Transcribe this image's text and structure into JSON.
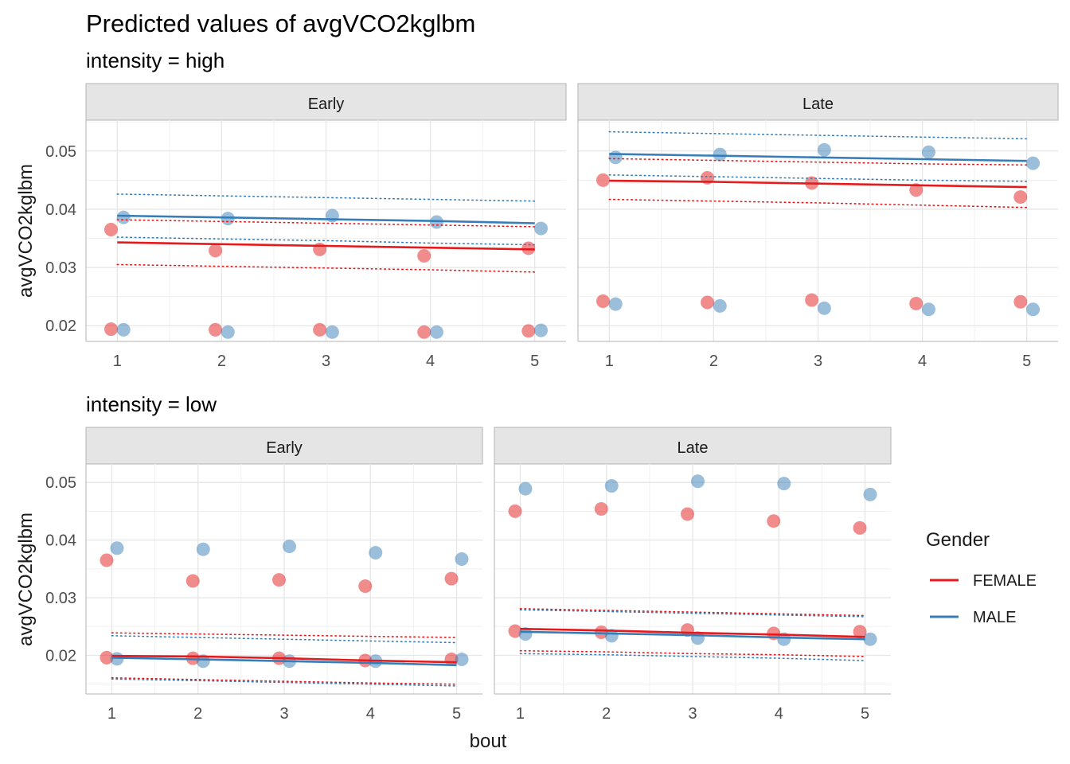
{
  "title": "Predicted values of avgVCO2kglbm",
  "chart_data": {
    "type": "line",
    "title": "Predicted values of avgVCO2kglbm",
    "xlabel": "bout",
    "ylabel": "avgVCO2kglbm",
    "x_ticks": [
      1,
      2,
      3,
      4,
      5
    ],
    "y_ticks": [
      0.02,
      0.03,
      0.04,
      0.05
    ],
    "y_tick_labels": [
      "0.02",
      "0.03",
      "0.04",
      "0.05"
    ],
    "grid": true,
    "legend": {
      "title": "Gender",
      "position": "right",
      "entries": [
        {
          "name": "FEMALE",
          "color": "#e41a1c"
        },
        {
          "name": "MALE",
          "color": "#377eb8"
        }
      ]
    },
    "rows": [
      {
        "label": "intensity = high",
        "ylim": [
          0.0173,
          0.0553
        ],
        "panels": [
          {
            "strip": "Early",
            "series": [
              {
                "name": "FEMALE",
                "x": [
                  1,
                  2,
                  3,
                  4,
                  5
                ],
                "fit": [
                  0.0343,
                  0.034,
                  0.0337,
                  0.0334,
                  0.0331
                ],
                "lower": [
                  0.0305,
                  0.0302,
                  0.0299,
                  0.0296,
                  0.0292
                ],
                "upper": [
                  0.0382,
                  0.0379,
                  0.0376,
                  0.0373,
                  0.037
                ]
              },
              {
                "name": "MALE",
                "x": [
                  1,
                  2,
                  3,
                  4,
                  5
                ],
                "fit": [
                  0.0389,
                  0.0386,
                  0.0383,
                  0.038,
                  0.0376
                ],
                "lower": [
                  0.0352,
                  0.0349,
                  0.0346,
                  0.0342,
                  0.0339
                ],
                "upper": [
                  0.0426,
                  0.0423,
                  0.042,
                  0.0417,
                  0.0414
                ]
              }
            ],
            "points": [
              {
                "group": "FEMALE",
                "x": [
                  0.94,
                  1.94,
                  2.94,
                  3.94,
                  4.94
                ],
                "y": [
                  0.0365,
                  0.0329,
                  0.0331,
                  0.032,
                  0.0333
                ]
              },
              {
                "group": "MALE",
                "x": [
                  1.06,
                  2.06,
                  3.06,
                  4.06,
                  5.06
                ],
                "y": [
                  0.0386,
                  0.0384,
                  0.0389,
                  0.0378,
                  0.0367
                ]
              },
              {
                "group": "FEMALE",
                "x": [
                  0.94,
                  1.94,
                  2.94,
                  3.94,
                  4.94
                ],
                "y": [
                  0.0194,
                  0.0193,
                  0.0193,
                  0.0189,
                  0.0191
                ]
              },
              {
                "group": "MALE",
                "x": [
                  1.06,
                  2.06,
                  3.06,
                  4.06,
                  5.06
                ],
                "y": [
                  0.0193,
                  0.0189,
                  0.0189,
                  0.0189,
                  0.0192
                ]
              }
            ]
          },
          {
            "strip": "Late",
            "series": [
              {
                "name": "FEMALE",
                "x": [
                  1,
                  2,
                  3,
                  4,
                  5
                ],
                "fit": [
                  0.0449,
                  0.0447,
                  0.0444,
                  0.0441,
                  0.0438
                ],
                "lower": [
                  0.0417,
                  0.0414,
                  0.0411,
                  0.0407,
                  0.0403
                ],
                "upper": [
                  0.0487,
                  0.0484,
                  0.0481,
                  0.0478,
                  0.0476
                ]
              },
              {
                "name": "MALE",
                "x": [
                  1,
                  2,
                  3,
                  4,
                  5
                ],
                "fit": [
                  0.0495,
                  0.0492,
                  0.0489,
                  0.0486,
                  0.0483
                ],
                "lower": [
                  0.0459,
                  0.0456,
                  0.0453,
                  0.045,
                  0.0448
                ],
                "upper": [
                  0.0533,
                  0.053,
                  0.0527,
                  0.0524,
                  0.0521
                ]
              }
            ],
            "points": [
              {
                "group": "FEMALE",
                "x": [
                  0.94,
                  1.94,
                  2.94,
                  3.94,
                  4.94
                ],
                "y": [
                  0.045,
                  0.0454,
                  0.0445,
                  0.0433,
                  0.0421
                ]
              },
              {
                "group": "MALE",
                "x": [
                  1.06,
                  2.06,
                  3.06,
                  4.06,
                  5.06
                ],
                "y": [
                  0.0489,
                  0.0494,
                  0.0502,
                  0.0498,
                  0.0479
                ]
              },
              {
                "group": "FEMALE",
                "x": [
                  0.94,
                  1.94,
                  2.94,
                  3.94,
                  4.94
                ],
                "y": [
                  0.0242,
                  0.024,
                  0.0244,
                  0.0238,
                  0.0241
                ]
              },
              {
                "group": "MALE",
                "x": [
                  1.06,
                  2.06,
                  3.06,
                  4.06,
                  5.06
                ],
                "y": [
                  0.0237,
                  0.0234,
                  0.023,
                  0.0228,
                  0.0228
                ]
              }
            ]
          }
        ]
      },
      {
        "label": "intensity = low",
        "ylim": [
          0.0133,
          0.0532
        ],
        "panels": [
          {
            "strip": "Early",
            "series": [
              {
                "name": "FEMALE",
                "x": [
                  1,
                  2,
                  3,
                  4,
                  5
                ],
                "fit": [
                  0.0199,
                  0.0198,
                  0.0195,
                  0.0191,
                  0.0188
                ],
                "lower": [
                  0.0161,
                  0.0158,
                  0.0155,
                  0.0152,
                  0.015
                ],
                "upper": [
                  0.0239,
                  0.0237,
                  0.0235,
                  0.0233,
                  0.0231
                ]
              },
              {
                "name": "MALE",
                "x": [
                  1,
                  2,
                  3,
                  4,
                  5
                ],
                "fit": [
                  0.0196,
                  0.0193,
                  0.019,
                  0.0187,
                  0.0183
                ],
                "lower": [
                  0.0159,
                  0.0156,
                  0.0153,
                  0.015,
                  0.0147
                ],
                "upper": [
                  0.0234,
                  0.0231,
                  0.0228,
                  0.0225,
                  0.0222
                ]
              }
            ],
            "points": [
              {
                "group": "FEMALE",
                "x": [
                  0.94,
                  1.94,
                  2.94,
                  3.94,
                  4.94
                ],
                "y": [
                  0.0365,
                  0.0329,
                  0.0331,
                  0.032,
                  0.0333
                ]
              },
              {
                "group": "MALE",
                "x": [
                  1.06,
                  2.06,
                  3.06,
                  4.06,
                  5.06
                ],
                "y": [
                  0.0386,
                  0.0384,
                  0.0389,
                  0.0378,
                  0.0367
                ]
              },
              {
                "group": "FEMALE",
                "x": [
                  0.94,
                  1.94,
                  2.94,
                  3.94,
                  4.94
                ],
                "y": [
                  0.0196,
                  0.0195,
                  0.0195,
                  0.0191,
                  0.0193
                ]
              },
              {
                "group": "MALE",
                "x": [
                  1.06,
                  2.06,
                  3.06,
                  4.06,
                  5.06
                ],
                "y": [
                  0.0194,
                  0.019,
                  0.019,
                  0.019,
                  0.0193
                ]
              }
            ]
          },
          {
            "strip": "Late",
            "series": [
              {
                "name": "FEMALE",
                "x": [
                  1,
                  2,
                  3,
                  4,
                  5
                ],
                "fit": [
                  0.0246,
                  0.0243,
                  0.0239,
                  0.0236,
                  0.0232
                ],
                "lower": [
                  0.0208,
                  0.0206,
                  0.0203,
                  0.0201,
                  0.0198
                ],
                "upper": [
                  0.0281,
                  0.0278,
                  0.0275,
                  0.0272,
                  0.0269
                ]
              },
              {
                "name": "MALE",
                "x": [
                  1,
                  2,
                  3,
                  4,
                  5
                ],
                "fit": [
                  0.0241,
                  0.0238,
                  0.0235,
                  0.0231,
                  0.0228
                ],
                "lower": [
                  0.0203,
                  0.0201,
                  0.0198,
                  0.0195,
                  0.0191
                ],
                "upper": [
                  0.0279,
                  0.0276,
                  0.0273,
                  0.027,
                  0.0267
                ]
              }
            ],
            "points": [
              {
                "group": "FEMALE",
                "x": [
                  0.94,
                  1.94,
                  2.94,
                  3.94,
                  4.94
                ],
                "y": [
                  0.045,
                  0.0454,
                  0.0445,
                  0.0433,
                  0.0421
                ]
              },
              {
                "group": "MALE",
                "x": [
                  1.06,
                  2.06,
                  3.06,
                  4.06,
                  5.06
                ],
                "y": [
                  0.0489,
                  0.0494,
                  0.0502,
                  0.0498,
                  0.0479
                ]
              },
              {
                "group": "FEMALE",
                "x": [
                  0.94,
                  1.94,
                  2.94,
                  3.94,
                  4.94
                ],
                "y": [
                  0.0242,
                  0.024,
                  0.0244,
                  0.0238,
                  0.0241
                ]
              },
              {
                "group": "MALE",
                "x": [
                  1.06,
                  2.06,
                  3.06,
                  4.06,
                  5.06
                ],
                "y": [
                  0.0237,
                  0.0234,
                  0.023,
                  0.0228,
                  0.0228
                ]
              }
            ]
          }
        ]
      }
    ]
  }
}
